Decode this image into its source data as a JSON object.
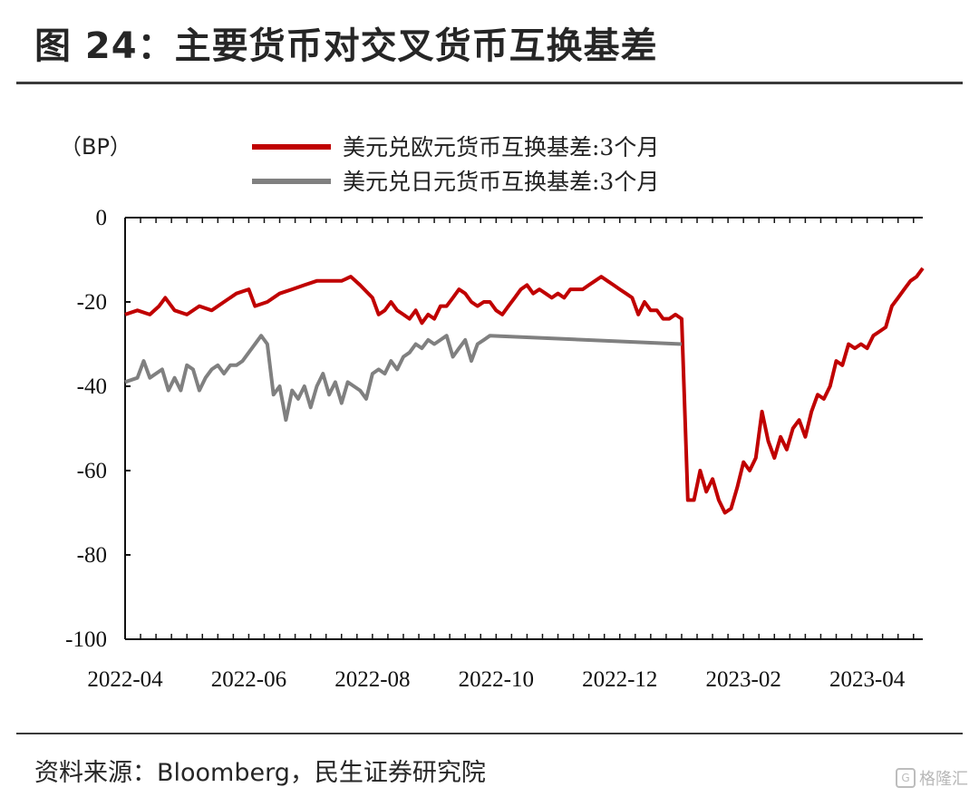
{
  "title": "图 24：主要货币对交叉货币互换基差",
  "source": "资料来源：Bloomberg，民生证券研究院",
  "watermark": "格隆汇",
  "chart_data": {
    "type": "line",
    "unit_label": "（BP）",
    "ylim": [
      -100,
      0
    ],
    "yticks": [
      0,
      -20,
      -40,
      -60,
      -80,
      -100
    ],
    "x_tick_labels": [
      "2022-04",
      "2022-06",
      "2022-08",
      "2022-10",
      "2022-12",
      "2023-02",
      "2023-04"
    ],
    "x_tick_positions": [
      0,
      2,
      4,
      6,
      8,
      10,
      12
    ],
    "x_range": [
      0,
      12.9
    ],
    "series": [
      {
        "name": "美元兑欧元货币互换基差:3个月",
        "color": "#c00000",
        "points": [
          [
            0,
            -23
          ],
          [
            0.2,
            -22
          ],
          [
            0.4,
            -23
          ],
          [
            0.55,
            -21
          ],
          [
            0.65,
            -19
          ],
          [
            0.8,
            -22
          ],
          [
            1.0,
            -23
          ],
          [
            1.2,
            -21
          ],
          [
            1.4,
            -22
          ],
          [
            1.6,
            -20
          ],
          [
            1.8,
            -18
          ],
          [
            2.0,
            -17
          ],
          [
            2.1,
            -21
          ],
          [
            2.3,
            -20
          ],
          [
            2.5,
            -18
          ],
          [
            2.7,
            -17
          ],
          [
            2.9,
            -16
          ],
          [
            3.1,
            -15
          ],
          [
            3.3,
            -15
          ],
          [
            3.5,
            -15
          ],
          [
            3.65,
            -14
          ],
          [
            3.8,
            -16
          ],
          [
            4.0,
            -19
          ],
          [
            4.1,
            -23
          ],
          [
            4.2,
            -22
          ],
          [
            4.3,
            -20
          ],
          [
            4.4,
            -22
          ],
          [
            4.5,
            -23
          ],
          [
            4.6,
            -24
          ],
          [
            4.7,
            -22
          ],
          [
            4.8,
            -25
          ],
          [
            4.9,
            -23
          ],
          [
            5.0,
            -24
          ],
          [
            5.1,
            -21
          ],
          [
            5.2,
            -21
          ],
          [
            5.3,
            -19
          ],
          [
            5.4,
            -17
          ],
          [
            5.5,
            -18
          ],
          [
            5.6,
            -20
          ],
          [
            5.7,
            -21
          ],
          [
            5.8,
            -20
          ],
          [
            5.9,
            -20
          ],
          [
            6.0,
            -22
          ],
          [
            6.1,
            -23
          ],
          [
            6.2,
            -21
          ],
          [
            6.3,
            -19
          ],
          [
            6.4,
            -17
          ],
          [
            6.5,
            -16
          ],
          [
            6.6,
            -18
          ],
          [
            6.7,
            -17
          ],
          [
            6.8,
            -18
          ],
          [
            6.9,
            -19
          ],
          [
            7.0,
            -18
          ],
          [
            7.1,
            -19
          ],
          [
            7.2,
            -17
          ],
          [
            7.3,
            -17
          ],
          [
            7.4,
            -17
          ],
          [
            7.5,
            -16
          ],
          [
            7.6,
            -15
          ],
          [
            7.7,
            -14
          ],
          [
            7.8,
            -15
          ],
          [
            7.9,
            -16
          ],
          [
            8.0,
            -17
          ],
          [
            8.1,
            -18
          ],
          [
            8.2,
            -19
          ],
          [
            8.3,
            -23
          ],
          [
            8.4,
            -20
          ],
          [
            8.5,
            -22
          ],
          [
            8.6,
            -22
          ],
          [
            8.7,
            -24
          ],
          [
            8.8,
            -24
          ],
          [
            8.9,
            -23
          ],
          [
            9.0,
            -24
          ],
          [
            9.1,
            -67
          ],
          [
            9.2,
            -67
          ],
          [
            9.3,
            -60
          ],
          [
            9.4,
            -65
          ],
          [
            9.5,
            -62
          ],
          [
            9.6,
            -67
          ],
          [
            9.7,
            -70
          ],
          [
            9.8,
            -69
          ],
          [
            9.9,
            -64
          ],
          [
            10.0,
            -58
          ],
          [
            10.1,
            -60
          ],
          [
            10.2,
            -57
          ],
          [
            10.3,
            -46
          ],
          [
            10.4,
            -53
          ],
          [
            10.5,
            -57
          ],
          [
            10.6,
            -52
          ],
          [
            10.7,
            -55
          ],
          [
            10.8,
            -50
          ],
          [
            10.9,
            -48
          ],
          [
            11.0,
            -52
          ],
          [
            11.1,
            -46
          ],
          [
            11.2,
            -42
          ],
          [
            11.3,
            -43
          ],
          [
            11.4,
            -40
          ],
          [
            11.5,
            -34
          ],
          [
            11.6,
            -35
          ],
          [
            11.7,
            -30
          ],
          [
            11.8,
            -31
          ],
          [
            11.9,
            -30
          ],
          [
            12.0,
            -31
          ],
          [
            12.1,
            -28
          ],
          [
            12.2,
            -27
          ],
          [
            12.3,
            -26
          ],
          [
            12.4,
            -21
          ],
          [
            12.5,
            -19
          ],
          [
            12.6,
            -17
          ],
          [
            12.7,
            -15
          ],
          [
            12.8,
            -14
          ],
          [
            12.9,
            -12
          ]
        ]
      },
      {
        "name": "美元兑日元货币互换基差:3个月",
        "color": "#808080",
        "points": [
          [
            0,
            -39
          ],
          [
            0.2,
            -38
          ],
          [
            0.3,
            -34
          ],
          [
            0.4,
            -38
          ],
          [
            0.6,
            -36
          ],
          [
            0.7,
            -41
          ],
          [
            0.8,
            -38
          ],
          [
            0.9,
            -41
          ],
          [
            1.0,
            -35
          ],
          [
            1.1,
            -36
          ],
          [
            1.2,
            -41
          ],
          [
            1.3,
            -38
          ],
          [
            1.4,
            -36
          ],
          [
            1.5,
            -35
          ],
          [
            1.6,
            -37
          ],
          [
            1.7,
            -35
          ],
          [
            1.8,
            -35
          ],
          [
            1.9,
            -34
          ],
          [
            2.0,
            -32
          ],
          [
            2.1,
            -30
          ],
          [
            2.2,
            -28
          ],
          [
            2.3,
            -30
          ],
          [
            2.4,
            -42
          ],
          [
            2.5,
            -40
          ],
          [
            2.6,
            -48
          ],
          [
            2.7,
            -41
          ],
          [
            2.8,
            -43
          ],
          [
            2.9,
            -40
          ],
          [
            3.0,
            -45
          ],
          [
            3.1,
            -40
          ],
          [
            3.2,
            -37
          ],
          [
            3.3,
            -42
          ],
          [
            3.4,
            -39
          ],
          [
            3.5,
            -44
          ],
          [
            3.6,
            -39
          ],
          [
            3.7,
            -40
          ],
          [
            3.8,
            -41
          ],
          [
            3.9,
            -43
          ],
          [
            4.0,
            -37
          ],
          [
            4.1,
            -36
          ],
          [
            4.2,
            -37
          ],
          [
            4.3,
            -34
          ],
          [
            4.4,
            -36
          ],
          [
            4.5,
            -33
          ],
          [
            4.6,
            -32
          ],
          [
            4.7,
            -30
          ],
          [
            4.8,
            -31
          ],
          [
            4.9,
            -29
          ],
          [
            5.0,
            -30
          ],
          [
            5.1,
            -29
          ],
          [
            5.2,
            -28
          ],
          [
            5.3,
            -33
          ],
          [
            5.4,
            -31
          ],
          [
            5.5,
            -29
          ],
          [
            5.6,
            -34
          ],
          [
            5.7,
            -30
          ],
          [
            5.8,
            -29
          ],
          [
            5.9,
            -28
          ],
          [
            9.0,
            -30
          ]
        ]
      }
    ]
  },
  "legend": [
    {
      "label": "美元兑欧元货币互换基差:3个月",
      "color": "#c00000"
    },
    {
      "label": "美元兑日元货币互换基差:3个月",
      "color": "#808080"
    }
  ]
}
